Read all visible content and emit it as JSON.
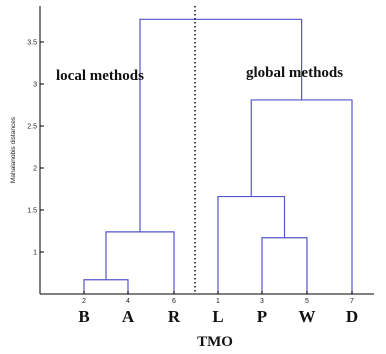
{
  "chart_data": {
    "type": "dendrogram",
    "xlabel": "TMO",
    "ylabel": "Mahalanobis distances",
    "ylim": [
      0.5,
      3.9
    ],
    "yticks": [
      {
        "value": 1,
        "label": "1"
      },
      {
        "value": 1.5,
        "label": "1.5"
      },
      {
        "value": 2,
        "label": "2"
      },
      {
        "value": 2.5,
        "label": "2.5"
      },
      {
        "value": 3,
        "label": "3"
      },
      {
        "value": 3.5,
        "label": "3.5"
      }
    ],
    "leaves": [
      {
        "num": "2",
        "letter": "B"
      },
      {
        "num": "4",
        "letter": "A"
      },
      {
        "num": "6",
        "letter": "R"
      },
      {
        "num": "1",
        "letter": "L"
      },
      {
        "num": "3",
        "letter": "P"
      },
      {
        "num": "5",
        "letter": "W"
      },
      {
        "num": "7",
        "letter": "D"
      }
    ],
    "merges": [
      {
        "left": "B",
        "right": "A",
        "height": 0.67
      },
      {
        "left": "BA",
        "right": "R",
        "height": 1.24
      },
      {
        "left": "P",
        "right": "W",
        "height": 1.17
      },
      {
        "left": "L",
        "right": "PW",
        "height": 1.66
      },
      {
        "left": "LPW",
        "right": "D",
        "height": 2.81
      },
      {
        "left": "BAR",
        "right": "LPWD",
        "height": 3.77
      }
    ],
    "annotations": {
      "local": "local methods",
      "global": "global methods"
    },
    "separator": "dotted vertical line between R and L",
    "colors": {
      "links": "#5555cc",
      "axis": "#000000"
    }
  }
}
